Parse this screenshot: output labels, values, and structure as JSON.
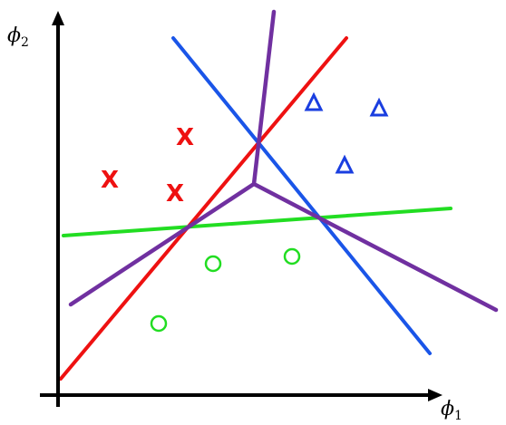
{
  "axes": {
    "x_label": "ϕ",
    "x_label_sub": "1",
    "y_label": "ϕ",
    "y_label_sub": "2"
  },
  "colors": {
    "axis": "#000000",
    "class_x": "#ee1111",
    "class_triangle": "#1a3ee0",
    "class_circle": "#22dd22",
    "line_red": "#ee1111",
    "line_blue": "#1a55e8",
    "line_green": "#22dd22",
    "voronoi": "#7030a0"
  },
  "markers": {
    "x_glyph": "X",
    "x_marker_count": 3,
    "triangle_marker_count": 3,
    "circle_marker_count": 3
  }
}
